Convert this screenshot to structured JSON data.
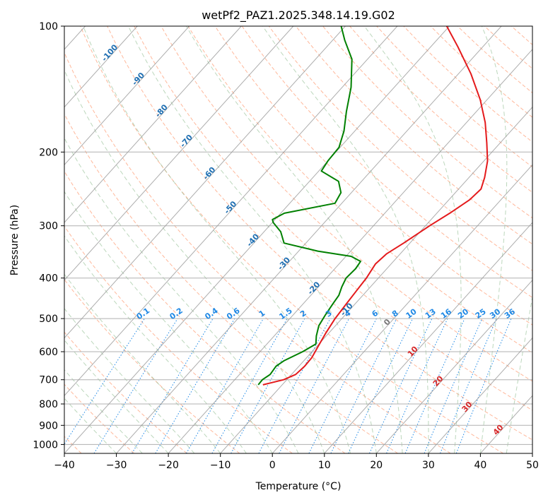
{
  "chart_data": {
    "type": "line",
    "title": "wetPf2_PAZ1.2025.348.14.19.G02",
    "xlabel": "Temperature (°C)",
    "ylabel": "Pressure (hPa)",
    "xlim": [
      -40,
      50
    ],
    "ylim": [
      1050,
      100
    ],
    "x_ticks": [
      -40,
      -30,
      -20,
      -10,
      0,
      10,
      20,
      30,
      40,
      50
    ],
    "x_tick_labels": [
      "−40",
      "−30",
      "−20",
      "−10",
      "0",
      "10",
      "20",
      "30",
      "40",
      "50"
    ],
    "y_ticks": [
      1000,
      900,
      800,
      700,
      600,
      500,
      400,
      300,
      200,
      100
    ],
    "y_tick_labels": [
      "1000",
      "900",
      "800",
      "700",
      "600",
      "500",
      "400",
      "300",
      "200",
      "100"
    ],
    "grid": true,
    "colors": {
      "temperature": "#e41a1c",
      "dewpoint": "#008000",
      "isotherm": "#999999",
      "dry_adiabat": "#ffa07a",
      "moist_adiabat": "#8fbc8f",
      "mixing_ratio": "#1e88e5",
      "isotherm_label": "#1f6fb2",
      "warm_label": "#d62728"
    },
    "series": [
      {
        "name": "Temperature",
        "color": "#e41a1c",
        "points": [
          [
            720,
            -13.7
          ],
          [
            700,
            -10.6
          ],
          [
            680,
            -9.2
          ],
          [
            650,
            -8.9
          ],
          [
            620,
            -9.0
          ],
          [
            580,
            -9.8
          ],
          [
            540,
            -10.6
          ],
          [
            500,
            -11.3
          ],
          [
            460,
            -11.7
          ],
          [
            430,
            -12.0
          ],
          [
            400,
            -12.3
          ],
          [
            370,
            -13.0
          ],
          [
            350,
            -12.6
          ],
          [
            330,
            -11.2
          ],
          [
            300,
            -9.2
          ],
          [
            280,
            -7.5
          ],
          [
            260,
            -6.0
          ],
          [
            245,
            -5.7
          ],
          [
            230,
            -7.0
          ],
          [
            210,
            -9.3
          ],
          [
            190,
            -12.6
          ],
          [
            170,
            -16.4
          ],
          [
            150,
            -21.3
          ],
          [
            130,
            -27.6
          ],
          [
            112,
            -34.8
          ],
          [
            100,
            -40.5
          ]
        ]
      },
      {
        "name": "Dewpoint",
        "color": "#008000",
        "points": [
          [
            720,
            -14.6
          ],
          [
            700,
            -14.7
          ],
          [
            680,
            -14.1
          ],
          [
            650,
            -14.4
          ],
          [
            630,
            -13.8
          ],
          [
            600,
            -11.8
          ],
          [
            575,
            -10.6
          ],
          [
            550,
            -11.9
          ],
          [
            520,
            -13.2
          ],
          [
            490,
            -13.8
          ],
          [
            460,
            -14.3
          ],
          [
            440,
            -14.6
          ],
          [
            420,
            -15.5
          ],
          [
            400,
            -16.2
          ],
          [
            380,
            -16.0
          ],
          [
            365,
            -16.3
          ],
          [
            355,
            -19.0
          ],
          [
            345,
            -26.3
          ],
          [
            330,
            -34.2
          ],
          [
            310,
            -36.8
          ],
          [
            295,
            -39.8
          ],
          [
            290,
            -40.5
          ],
          [
            280,
            -39.3
          ],
          [
            265,
            -31.3
          ],
          [
            250,
            -32.0
          ],
          [
            235,
            -34.4
          ],
          [
            222,
            -39.5
          ],
          [
            210,
            -40.0
          ],
          [
            195,
            -40.2
          ],
          [
            178,
            -42.1
          ],
          [
            160,
            -45.0
          ],
          [
            140,
            -48.3
          ],
          [
            120,
            -53.0
          ],
          [
            108,
            -57.7
          ],
          [
            100,
            -60.8
          ]
        ]
      }
    ],
    "isotherm_labels": [
      "-100",
      "-90",
      "-80",
      "-70",
      "-60",
      "-50",
      "-40",
      "-30",
      "-20",
      "-10"
    ],
    "isotherm_label_positions": [
      [
        117,
        -100
      ],
      [
        135,
        -90
      ],
      [
        161,
        -80
      ],
      [
        190,
        -70
      ],
      [
        227,
        -60
      ],
      [
        274,
        -50
      ],
      [
        328,
        -40
      ],
      [
        373,
        -30
      ],
      [
        427,
        -20
      ],
      [
        480,
        -10
      ]
    ],
    "warm_isotherm_labels": [
      "0",
      "10",
      "20",
      "30",
      "40"
    ],
    "warm_isotherm_label_positions": [
      [
        515,
        0
      ],
      [
        605,
        10
      ],
      [
        712,
        20
      ],
      [
        820,
        30
      ],
      [
        931,
        40
      ]
    ],
    "mixing_ratio_labels": [
      "0.1",
      "0.2",
      "0.4",
      "0.6",
      "1",
      "1.5",
      "2",
      "3",
      "4",
      "6",
      "8",
      "10",
      "13",
      "16",
      "20",
      "25",
      "30",
      "36"
    ],
    "mixing_ratio_values": [
      0.1,
      0.2,
      0.4,
      0.6,
      1,
      1.5,
      2,
      3,
      4,
      6,
      8,
      10,
      13,
      16,
      20,
      25,
      30,
      36
    ]
  }
}
